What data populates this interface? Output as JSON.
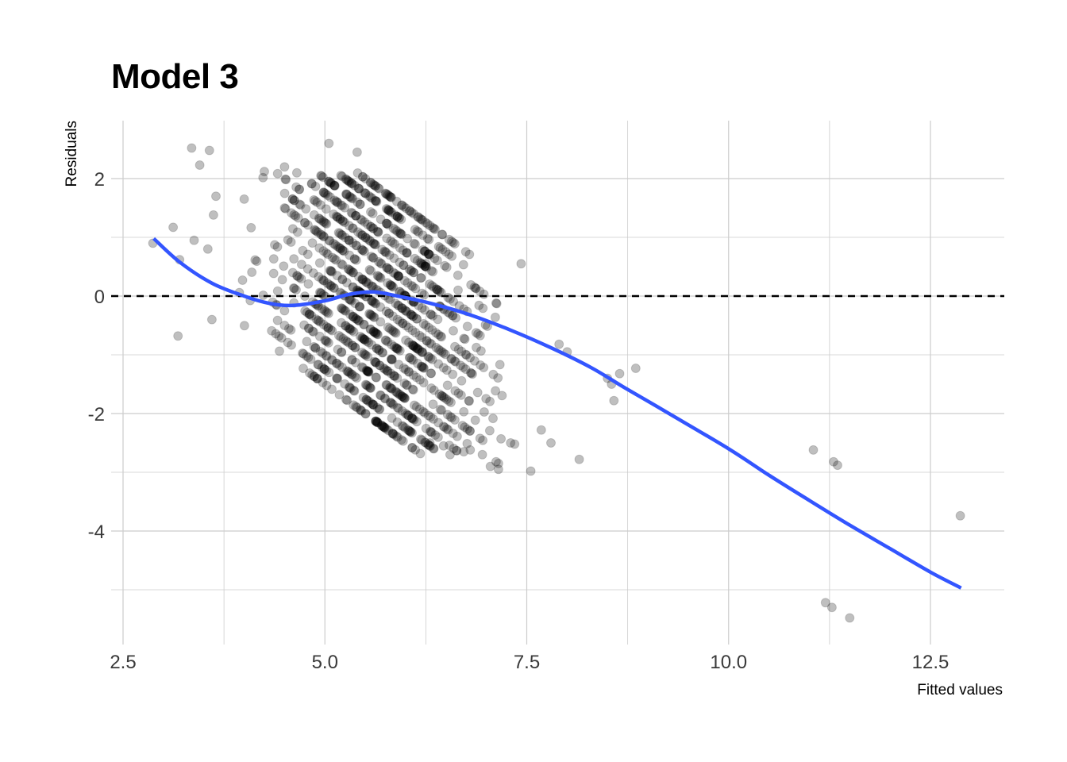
{
  "chart_data": {
    "type": "scatter",
    "title": "Model 3",
    "xlabel": "Fitted values",
    "ylabel": "Residuals",
    "xlim": [
      2.5,
      13.3
    ],
    "ylim": [
      -5.8,
      3.0
    ],
    "x_ticks": [
      2.5,
      5.0,
      7.5,
      10.0,
      12.5
    ],
    "x_tick_labels": [
      "2.5",
      "5.0",
      "7.5",
      "10.0",
      "12.5"
    ],
    "y_ticks": [
      -4,
      -2,
      0,
      2
    ],
    "y_tick_labels": [
      "-4",
      "-2",
      "0",
      "2"
    ],
    "grid": true,
    "reference_line": {
      "y": 0,
      "style": "dashed",
      "color": "#000000"
    },
    "colors": {
      "points": "#000000",
      "smooth": "#3355ff",
      "grid": "#cccccc"
    },
    "point_opacity": 0.25,
    "smooth_curve": {
      "x": [
        2.88,
        3.2,
        3.6,
        4.0,
        4.3,
        4.6,
        5.0,
        5.3,
        5.6,
        5.9,
        6.3,
        6.8,
        7.3,
        7.8,
        8.3,
        8.7,
        9.2,
        10.0,
        10.5,
        11.0,
        11.5,
        12.0,
        12.5,
        12.88
      ],
      "y": [
        0.98,
        0.58,
        0.22,
        0.0,
        -0.12,
        -0.16,
        -0.08,
        0.03,
        0.07,
        0.0,
        -0.12,
        -0.32,
        -0.58,
        -0.88,
        -1.22,
        -1.55,
        -1.95,
        -2.6,
        -3.05,
        -3.48,
        -3.9,
        -4.3,
        -4.7,
        -4.97
      ]
    },
    "outliers": {
      "x": [
        2.87,
        3.12,
        3.18,
        3.2,
        3.35,
        3.38,
        3.45,
        3.55,
        3.57,
        3.6,
        3.62,
        3.65,
        4.0,
        4.25,
        4.5,
        5.05,
        5.4,
        6.25,
        6.3,
        6.35,
        6.47,
        6.55,
        6.72,
        6.8,
        6.95,
        7.05,
        7.12,
        7.15,
        7.15,
        7.3,
        7.35,
        7.43,
        7.55,
        7.68,
        7.8,
        7.9,
        8.0,
        8.15,
        8.5,
        8.55,
        8.58,
        8.65,
        8.85,
        11.05,
        11.2,
        11.28,
        11.35,
        11.3,
        11.5,
        12.87
      ],
      "y": [
        0.9,
        1.17,
        -0.68,
        0.62,
        2.52,
        0.95,
        2.23,
        0.8,
        2.48,
        -0.4,
        1.38,
        1.7,
        1.65,
        2.12,
        2.2,
        2.6,
        2.45,
        0.55,
        -2.5,
        -2.6,
        -2.55,
        -2.7,
        -2.65,
        -2.62,
        -2.7,
        -2.9,
        -2.82,
        -2.85,
        -2.95,
        -2.5,
        -2.52,
        0.55,
        -2.98,
        -2.28,
        -2.5,
        -0.82,
        -0.95,
        -2.78,
        -1.4,
        -1.5,
        -1.78,
        -1.32,
        -1.23,
        -2.62,
        -5.22,
        -5.3,
        -2.88,
        -2.82,
        -5.48,
        -3.74
      ]
    },
    "point_generator": {
      "description": "dense residual bands: each band has constant observed value, residual = level - fitted",
      "levels": [
        3.5,
        3.75,
        4.0,
        4.25,
        4.5,
        4.75,
        5.0,
        5.25,
        5.5,
        5.75,
        6.0,
        6.25,
        6.5,
        6.75,
        7.0,
        7.25,
        7.5
      ],
      "fitted_range": [
        3.7,
        7.6
      ],
      "residual_range": [
        -2.7,
        2.1
      ]
    }
  }
}
